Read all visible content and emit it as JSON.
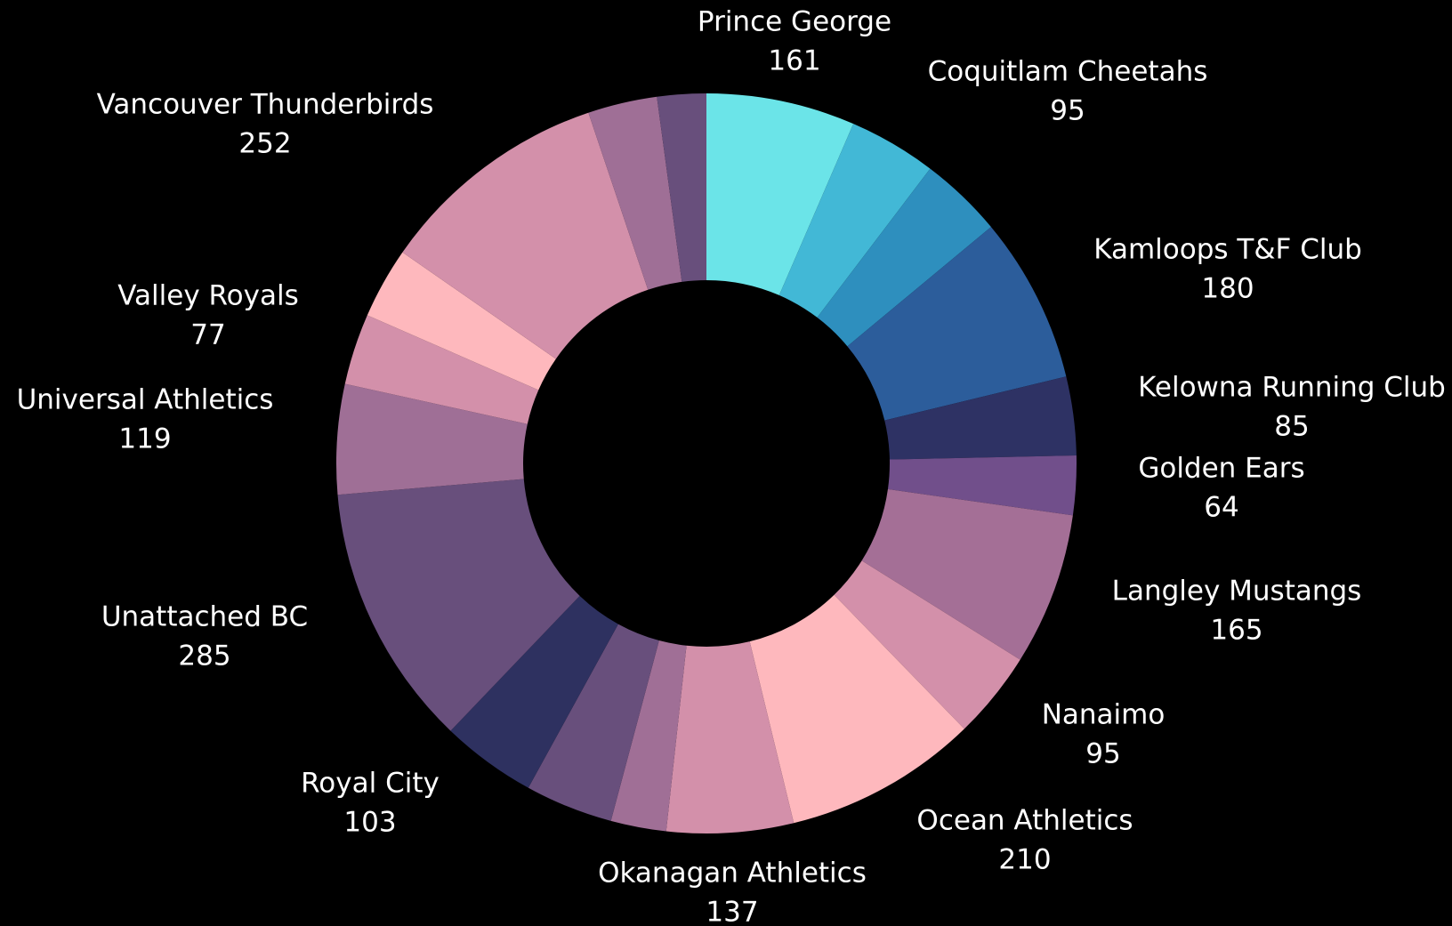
{
  "chart_data": {
    "type": "pie",
    "variant": "donut",
    "background": "#000000",
    "slices": [
      {
        "label": "Prince George",
        "value": 161,
        "color": "#6be4e8",
        "show_label": true
      },
      {
        "label": "Coquitlam Cheetahs",
        "value": 95,
        "color": "#42b8d6",
        "show_label": true
      },
      {
        "label": "",
        "value": 90,
        "color": "#2e8fbe",
        "show_label": false
      },
      {
        "label": "Kamloops T&F Club",
        "value": 180,
        "color": "#2c5d9b",
        "show_label": true
      },
      {
        "label": "Kelowna Running Club",
        "value": 85,
        "color": "#2e3264",
        "show_label": true
      },
      {
        "label": "Golden Ears",
        "value": 64,
        "color": "#714f8b",
        "show_label": true
      },
      {
        "label": "Langley Mustangs",
        "value": 165,
        "color": "#a46f96",
        "show_label": true
      },
      {
        "label": "Nanaimo",
        "value": 95,
        "color": "#d390aa",
        "show_label": true
      },
      {
        "label": "Ocean Athletics",
        "value": 210,
        "color": "#feb8bd",
        "show_label": true
      },
      {
        "label": "Okanagan Athletics",
        "value": 137,
        "color": "#d390aa",
        "show_label": true
      },
      {
        "label": "",
        "value": 60,
        "color": "#a06f96",
        "show_label": false
      },
      {
        "label": "",
        "value": 95,
        "color": "#684f7c",
        "show_label": false
      },
      {
        "label": "Royal City",
        "value": 103,
        "color": "#2e3160",
        "show_label": true
      },
      {
        "label": "Unattached BC",
        "value": 285,
        "color": "#684f7c",
        "show_label": true
      },
      {
        "label": "Universal Athletics",
        "value": 119,
        "color": "#9f6f96",
        "show_label": true
      },
      {
        "label": "",
        "value": 77,
        "color": "#d390aa",
        "show_label": false
      },
      {
        "label": "Valley Royals",
        "value": 77,
        "color": "#feb8bd",
        "show_label": true
      },
      {
        "label": "Vancouver Thunderbirds",
        "value": 252,
        "color": "#d390aa",
        "show_label": true
      },
      {
        "label": "",
        "value": 75,
        "color": "#9f6f96",
        "show_label": false
      },
      {
        "label": "",
        "value": 53,
        "color": "#684f7c",
        "show_label": false
      }
    ]
  }
}
